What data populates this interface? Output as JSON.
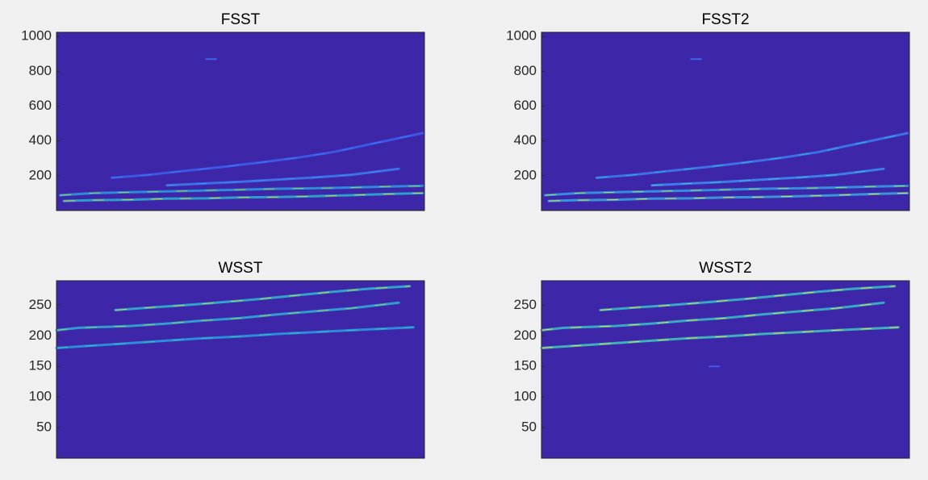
{
  "figure": {
    "background": "#f0f0f0"
  },
  "chart_data": [
    {
      "type": "heatmap",
      "title": "FSST",
      "xlabel": "",
      "ylabel": "",
      "ylim": [
        0,
        1024
      ],
      "yticks": [
        "200",
        "400",
        "600",
        "800",
        "1000"
      ],
      "ytick_values": [
        200,
        400,
        600,
        800,
        1000
      ],
      "xlim": [
        0,
        1
      ],
      "grid": false,
      "background_color": "#3e26a8",
      "ridges": [
        {
          "x": [
            0.02,
            0.1,
            0.2,
            0.3,
            0.4,
            0.5,
            0.6,
            0.7,
            0.8,
            0.9,
            0.995
          ],
          "y": [
            55,
            60,
            62,
            68,
            70,
            75,
            78,
            82,
            88,
            95,
            100
          ],
          "color": "#2ab3d0",
          "highlight": "#e6d23a"
        },
        {
          "x": [
            0.01,
            0.1,
            0.2,
            0.3,
            0.4,
            0.5,
            0.6,
            0.7,
            0.8,
            0.9,
            0.995
          ],
          "y": [
            88,
            100,
            105,
            110,
            115,
            120,
            125,
            128,
            132,
            138,
            142
          ],
          "color": "#2a9fe0",
          "highlight": "#a8d050"
        },
        {
          "x": [
            0.3,
            0.4,
            0.5,
            0.6,
            0.7,
            0.8,
            0.93
          ],
          "y": [
            145,
            155,
            165,
            178,
            190,
            205,
            240
          ],
          "color": "#3d7cf5",
          "highlight": "#3d8cf5"
        },
        {
          "x": [
            0.15,
            0.25,
            0.35,
            0.45,
            0.55,
            0.65,
            0.75,
            0.85,
            0.995
          ],
          "y": [
            188,
            205,
            228,
            250,
            275,
            302,
            335,
            380,
            445
          ],
          "color": "#3c5ff0",
          "highlight": "#3d7cf5"
        }
      ],
      "spots": [
        {
          "x": 0.42,
          "y": 870,
          "color": "#3d66f2"
        }
      ]
    },
    {
      "type": "heatmap",
      "title": "FSST2",
      "xlabel": "",
      "ylabel": "",
      "ylim": [
        0,
        1024
      ],
      "yticks": [
        "200",
        "400",
        "600",
        "800",
        "1000"
      ],
      "ytick_values": [
        200,
        400,
        600,
        800,
        1000
      ],
      "xlim": [
        0,
        1
      ],
      "grid": false,
      "background_color": "#3e26a8",
      "ridges": [
        {
          "x": [
            0.02,
            0.1,
            0.2,
            0.3,
            0.4,
            0.5,
            0.6,
            0.7,
            0.8,
            0.9,
            0.995
          ],
          "y": [
            55,
            60,
            62,
            68,
            70,
            75,
            78,
            82,
            88,
            95,
            100
          ],
          "color": "#3aa8e0",
          "highlight": "#f0e040"
        },
        {
          "x": [
            0.01,
            0.1,
            0.2,
            0.3,
            0.4,
            0.5,
            0.6,
            0.7,
            0.8,
            0.9,
            0.995
          ],
          "y": [
            88,
            100,
            105,
            110,
            115,
            120,
            125,
            128,
            132,
            138,
            142
          ],
          "color": "#35a0e8",
          "highlight": "#b0e050"
        },
        {
          "x": [
            0.3,
            0.4,
            0.5,
            0.6,
            0.7,
            0.8,
            0.93
          ],
          "y": [
            145,
            155,
            165,
            178,
            190,
            205,
            240
          ],
          "color": "#3d8cf5",
          "highlight": "#40c0d0"
        },
        {
          "x": [
            0.15,
            0.25,
            0.35,
            0.45,
            0.55,
            0.65,
            0.75,
            0.85,
            0.995
          ],
          "y": [
            188,
            205,
            228,
            250,
            275,
            302,
            335,
            380,
            445
          ],
          "color": "#3d7cf5",
          "highlight": "#30b8c8"
        }
      ],
      "spots": [
        {
          "x": 0.42,
          "y": 870,
          "color": "#3d66f2"
        }
      ]
    },
    {
      "type": "heatmap",
      "title": "WSST",
      "xlabel": "",
      "ylabel": "",
      "ylim": [
        0,
        290
      ],
      "yticks": [
        "50",
        "100",
        "150",
        "200",
        "250"
      ],
      "ytick_values": [
        50,
        100,
        150,
        200,
        250
      ],
      "xlim": [
        0,
        1
      ],
      "grid": false,
      "background_color": "#3e26a8",
      "ridges": [
        {
          "x": [
            0.0,
            0.1,
            0.2,
            0.3,
            0.4,
            0.5,
            0.6,
            0.7,
            0.8,
            0.97
          ],
          "y": [
            180,
            184,
            188,
            192,
            196,
            199,
            203,
            206,
            209,
            214
          ],
          "color": "#2a9fe0",
          "highlight": "#30c8c0"
        },
        {
          "x": [
            0.0,
            0.06,
            0.2,
            0.3,
            0.4,
            0.5,
            0.6,
            0.7,
            0.8,
            0.93
          ],
          "y": [
            209,
            213,
            216,
            220,
            225,
            229,
            235,
            240,
            245,
            254
          ],
          "color": "#30b0d8",
          "highlight": "#a0d058"
        },
        {
          "x": [
            0.16,
            0.25,
            0.35,
            0.45,
            0.55,
            0.65,
            0.75,
            0.85,
            0.96
          ],
          "y": [
            242,
            246,
            250,
            255,
            260,
            266,
            272,
            277,
            281
          ],
          "color": "#30b8d0",
          "highlight": "#d8d840"
        }
      ],
      "spots": []
    },
    {
      "type": "heatmap",
      "title": "WSST2",
      "xlabel": "",
      "ylabel": "",
      "ylim": [
        0,
        290
      ],
      "yticks": [
        "50",
        "100",
        "150",
        "200",
        "250"
      ],
      "ytick_values": [
        50,
        100,
        150,
        200,
        250
      ],
      "xlim": [
        0,
        1
      ],
      "grid": false,
      "background_color": "#3e26a8",
      "ridges": [
        {
          "x": [
            0.0,
            0.1,
            0.2,
            0.3,
            0.4,
            0.5,
            0.6,
            0.7,
            0.8,
            0.97
          ],
          "y": [
            180,
            184,
            188,
            192,
            196,
            199,
            203,
            206,
            209,
            214
          ],
          "color": "#40c8c0",
          "highlight": "#f0e040"
        },
        {
          "x": [
            0.0,
            0.06,
            0.2,
            0.3,
            0.4,
            0.5,
            0.6,
            0.7,
            0.8,
            0.93
          ],
          "y": [
            209,
            213,
            216,
            220,
            225,
            229,
            235,
            240,
            245,
            254
          ],
          "color": "#38c0c8",
          "highlight": "#f0e040"
        },
        {
          "x": [
            0.16,
            0.25,
            0.35,
            0.45,
            0.55,
            0.65,
            0.75,
            0.85,
            0.96
          ],
          "y": [
            242,
            246,
            250,
            255,
            260,
            266,
            272,
            277,
            281
          ],
          "color": "#38c0c8",
          "highlight": "#f0e040"
        }
      ],
      "spots": [
        {
          "x": 0.47,
          "y": 150,
          "color": "#3d5cf0"
        }
      ]
    }
  ]
}
